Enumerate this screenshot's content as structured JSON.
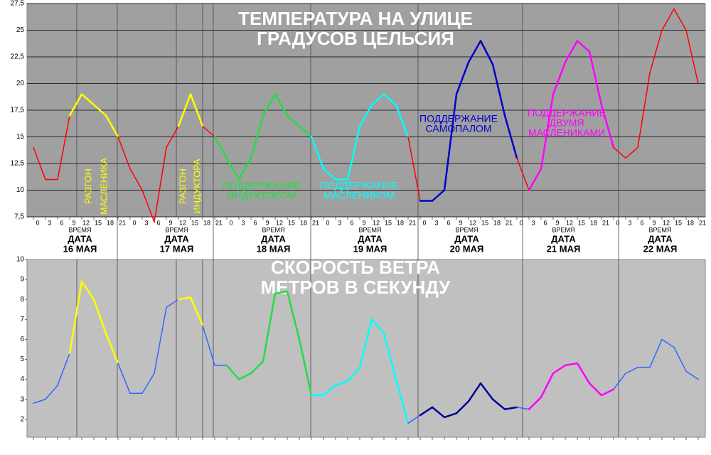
{
  "chart_data": [
    {
      "type": "line",
      "title": [
        "ТЕМПЕРАТУРА НА УЛИЦЕ",
        "ГРАДУСОВ ЦЕЛЬСИЯ"
      ],
      "ylim": [
        7.5,
        27.5
      ],
      "yticks": [
        {
          "value": 7.5,
          "label": "7,5"
        },
        10,
        {
          "value": 12.5,
          "label": "12,5"
        },
        15,
        {
          "value": 17.5,
          "label": "17,5"
        },
        20,
        {
          "value": 22.5,
          "label": "22,5"
        },
        25,
        {
          "value": 27.5,
          "label": "27,5"
        }
      ],
      "grid": true,
      "categories": [
        "0",
        "3",
        "6",
        "9",
        "12",
        "15",
        "18",
        "21",
        "0",
        "3",
        "6",
        "9",
        "12",
        "15",
        "18",
        "21",
        "0",
        "3",
        "6",
        "9",
        "12",
        "15",
        "18",
        "21",
        "0",
        "3",
        "6",
        "9",
        "12",
        "15",
        "18",
        "21",
        "0",
        "3",
        "6",
        "9",
        "12",
        "15",
        "18",
        "21",
        "0",
        "3",
        "6",
        "9",
        "12",
        "15",
        "18",
        "21",
        "0",
        "3",
        "6",
        "9",
        "12",
        "15",
        "18",
        "21"
      ],
      "x_label": "ВРЕМЯ",
      "days": [
        {
          "label": "ДАТА",
          "date": "16 МАЯ"
        },
        {
          "label": "ДАТА",
          "date": "17 МАЯ"
        },
        {
          "label": "ДАТА",
          "date": "18 МАЯ"
        },
        {
          "label": "ДАТА",
          "date": "19 МАЯ"
        },
        {
          "label": "ДАТА",
          "date": "20 МАЯ"
        },
        {
          "label": "ДАТА",
          "date": "21 МАЯ"
        },
        {
          "label": "ДАТА",
          "date": "22 МАЯ"
        }
      ],
      "series": [
        {
          "values": [
            14,
            11,
            11,
            17,
            19,
            18,
            17,
            15,
            12,
            10,
            7,
            14,
            16,
            19,
            16,
            15,
            13,
            11,
            13,
            17,
            19,
            17,
            16,
            15,
            12,
            11,
            11,
            16,
            18,
            19,
            18,
            15,
            9,
            9,
            10,
            19,
            22,
            24,
            21.8,
            17,
            13,
            10,
            12,
            19,
            22,
            24,
            23,
            18,
            14,
            13,
            14,
            21,
            25,
            27,
            25,
            20
          ],
          "point_colors": [
            "#ff0000",
            "#ff0000",
            "#ff0000",
            "#ff0000",
            "#ffff00",
            "#ffff00",
            "#ffff00",
            "#ffff00",
            "#ff0000",
            "#ff0000",
            "#ff0000",
            "#ff0000",
            "#ff0000",
            "#ffff00",
            "#ffff00",
            "#ff0000",
            "#22dd44",
            "#22dd44",
            "#22dd44",
            "#22dd44",
            "#22dd44",
            "#22dd44",
            "#22dd44",
            "#22dd44",
            "#00ffff",
            "#00ffff",
            "#00ffff",
            "#00ffff",
            "#00ffff",
            "#00ffff",
            "#00ffff",
            "#00ffff",
            "#ff0000",
            "#0000cc",
            "#0000cc",
            "#0000cc",
            "#0000cc",
            "#0000cc",
            "#0000cc",
            "#0000cc",
            "#0000cc",
            "#ff0000",
            "#ff00ff",
            "#ff00ff",
            "#ff00ff",
            "#ff00ff",
            "#ff00ff",
            "#ff00ff",
            "#ff00ff",
            "#ff0000",
            "#ff0000",
            "#ff0000",
            "#ff0000",
            "#ff0000",
            "#ff0000",
            "#ff0000"
          ]
        }
      ],
      "annotations": [
        {
          "lines": [
            "РАЗГОН",
            "МАСЛЕНИКА"
          ],
          "color": "#ffff00"
        },
        {
          "lines": [
            "РАЗГОН",
            "ИНДУКТОРА"
          ],
          "color": "#ffff00"
        },
        {
          "lines": [
            "ПОДДЕРЖАНИЕ",
            "ИНДУКТОРОМ"
          ],
          "color": "#22dd44"
        },
        {
          "lines": [
            "ПОДДЕРЖАНИЕ",
            "МАСЛЕНИКОМ"
          ],
          "color": "#00ffff"
        },
        {
          "lines": [
            "ПОДДЕРЖАНИЕ",
            "САМОПАЛОМ"
          ],
          "color": "#0000cc"
        },
        {
          "lines": [
            "ПОДДЕРЖАНИЕ",
            "ДВУМЯ",
            "МАСЛЕНИКАМИ"
          ],
          "color": "#ff00ff"
        }
      ]
    },
    {
      "type": "line",
      "title": [
        "СКОРОСТЬ ВЕТРА",
        "МЕТРОВ В СЕКУНДУ"
      ],
      "ylim": [
        1.1,
        10
      ],
      "yticks": [
        2,
        3,
        4,
        5,
        6,
        7,
        8,
        9,
        10
      ],
      "grid": false,
      "series": [
        {
          "values": [
            2.8,
            3,
            3.7,
            5.3,
            8.9,
            8,
            6.3,
            4.8,
            3.3,
            3.3,
            4.3,
            7.6,
            8,
            8.1,
            6.7,
            4.7,
            4.7,
            4,
            4.3,
            4.9,
            8.3,
            8.4,
            6,
            3.2,
            3.2,
            3.7,
            3.9,
            4.6,
            7,
            6.3,
            4,
            1.8,
            2.2,
            2.6,
            2.1,
            2.3,
            2.9,
            3.8,
            3,
            2.5,
            2.6,
            2.5,
            3.1,
            4.3,
            4.7,
            4.8,
            3.8,
            3.2,
            3.5,
            4.3,
            4.6,
            4.6,
            6,
            5.6,
            4.4,
            4
          ],
          "point_colors": [
            "#3366ff",
            "#3366ff",
            "#3366ff",
            "#3366ff",
            "#ffff00",
            "#ffff00",
            "#ffff00",
            "#ffff00",
            "#3366ff",
            "#3366ff",
            "#3366ff",
            "#3366ff",
            "#3366ff",
            "#ffff00",
            "#ffff00",
            "#3366ff",
            "#3366ff",
            "#22dd44",
            "#22dd44",
            "#22dd44",
            "#22dd44",
            "#22dd44",
            "#22dd44",
            "#22dd44",
            "#00ffff",
            "#00ffff",
            "#00ffff",
            "#00ffff",
            "#00ffff",
            "#00ffff",
            "#00ffff",
            "#00ffff",
            "#3366ff",
            "#000099",
            "#000099",
            "#000099",
            "#000099",
            "#000099",
            "#000099",
            "#000099",
            "#000099",
            "#3366ff",
            "#ff00ff",
            "#ff00ff",
            "#ff00ff",
            "#ff00ff",
            "#ff00ff",
            "#ff00ff",
            "#ff00ff",
            "#3366ff",
            "#3366ff",
            "#3366ff",
            "#3366ff",
            "#3366ff",
            "#3366ff",
            "#3366ff"
          ]
        }
      ]
    }
  ]
}
